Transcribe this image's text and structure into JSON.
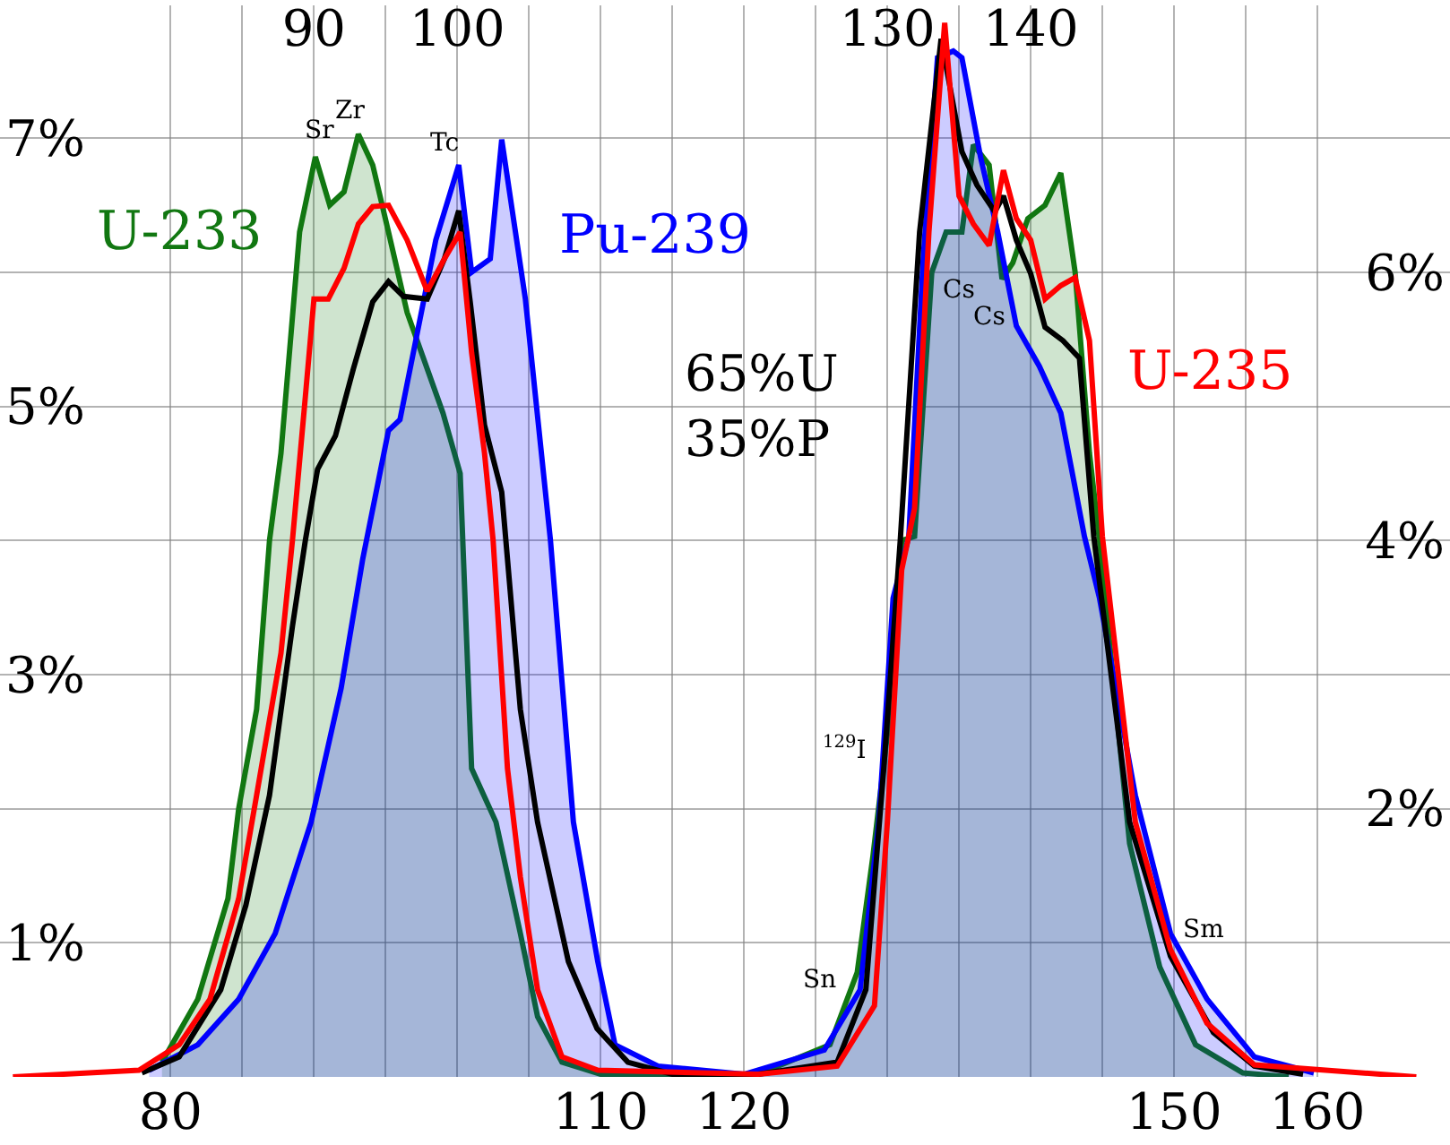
{
  "chart_data": {
    "type": "line",
    "xlim": [
      68.1,
      169.25
    ],
    "ylim": [
      0,
      7.99
    ],
    "y2lim": [
      0,
      7.99
    ],
    "x2lim": [
      68.1,
      169.25
    ],
    "xticks": [
      {
        "value": 80,
        "label": "80"
      },
      {
        "value": 85,
        "label": null
      },
      {
        "value": 90,
        "label": null
      },
      {
        "value": 95,
        "label": null
      },
      {
        "value": 100,
        "label": null
      },
      {
        "value": 105,
        "label": null
      },
      {
        "value": 110,
        "label": "110"
      },
      {
        "value": 115,
        "label": null
      },
      {
        "value": 120,
        "label": "120"
      },
      {
        "value": 125,
        "label": null
      },
      {
        "value": 130,
        "label": null
      },
      {
        "value": 135,
        "label": null
      },
      {
        "value": 140,
        "label": null
      },
      {
        "value": 145,
        "label": null
      },
      {
        "value": 150,
        "label": "150"
      },
      {
        "value": 155,
        "label": null
      },
      {
        "value": 160,
        "label": "160"
      }
    ],
    "x2ticks": [
      90,
      100,
      130,
      140
    ],
    "yticks": [
      {
        "value": 1,
        "label": "1%"
      },
      {
        "value": 2,
        "label": null
      },
      {
        "value": 3,
        "label": "3%"
      },
      {
        "value": 4,
        "label": null
      },
      {
        "value": 5,
        "label": "5%"
      },
      {
        "value": 6,
        "label": null
      },
      {
        "value": 7,
        "label": "7%"
      }
    ],
    "y2ticks": [
      {
        "value": 2,
        "label": "2%"
      },
      {
        "value": 4,
        "label": "4%"
      },
      {
        "value": 6,
        "label": "6%"
      }
    ],
    "grid": true,
    "marker": "none",
    "line_style": "solid",
    "series": [
      {
        "name": "U-233",
        "type": "area",
        "color": "#117711",
        "x": [
          79.4,
          81.9,
          84,
          84.75,
          86,
          86.9,
          87.7,
          89,
          90.1,
          91.1,
          92.1,
          93.1,
          94.1,
          95.2,
          96.5,
          99,
          100.2,
          101,
          102.7,
          104.4,
          105.6,
          107.3,
          110,
          121,
          126,
          127.9,
          129,
          130.2,
          131,
          131.9,
          133.1,
          134.1,
          135.2,
          136,
          137.1,
          138,
          138.75,
          139.8,
          141,
          142.1,
          143.1,
          144.1,
          144.8,
          146.9,
          149,
          151.5,
          154.8,
          158
        ],
        "values": [
          0.11,
          0.58,
          1.33,
          2.0,
          2.74,
          4.0,
          4.65,
          6.3,
          6.86,
          6.5,
          6.6,
          7.03,
          6.8,
          6.3,
          5.7,
          4.95,
          4.5,
          2.3,
          1.9,
          1.07,
          0.45,
          0.11,
          0.02,
          0.02,
          0.24,
          0.78,
          1.65,
          2.74,
          4.0,
          4.03,
          6.0,
          6.3,
          6.3,
          6.95,
          6.8,
          5.95,
          6.07,
          6.4,
          6.5,
          6.74,
          6.0,
          4.65,
          4.0,
          1.74,
          0.82,
          0.24,
          0.03,
          0.0
        ]
      },
      {
        "name": "Pu-239",
        "type": "area",
        "color": "#0000ff",
        "x": [
          78.5,
          81.9,
          84.75,
          87.3,
          89.8,
          91.9,
          93.4,
          95.2,
          96,
          98.5,
          100.1,
          101,
          102.3,
          103.1,
          104.75,
          106.5,
          107.3,
          108.1,
          109.8,
          111,
          114,
          120,
          125.6,
          128.1,
          129.4,
          130.4,
          131.5,
          132.5,
          133.5,
          134.6,
          135.2,
          136.5,
          137.7,
          139,
          140.6,
          142.1,
          143.75,
          144.8,
          147.3,
          149.75,
          152.3,
          155.6,
          159.75
        ],
        "values": [
          0.05,
          0.24,
          0.58,
          1.07,
          1.9,
          2.9,
          3.86,
          4.82,
          4.9,
          6.24,
          6.8,
          6.0,
          6.1,
          6.99,
          5.8,
          4.0,
          2.95,
          1.9,
          0.86,
          0.24,
          0.08,
          0.02,
          0.2,
          0.65,
          1.9,
          3.57,
          4.03,
          6.1,
          7.6,
          7.65,
          7.6,
          6.86,
          6.3,
          5.6,
          5.3,
          4.95,
          4.03,
          3.57,
          2.1,
          1.07,
          0.58,
          0.15,
          0.03
        ]
      },
      {
        "color": "#000000",
        "x": [
          78,
          80.6,
          83.5,
          85.25,
          86.9,
          88.5,
          89.4,
          90.25,
          91.5,
          92.75,
          94.1,
          95.2,
          96.25,
          97.9,
          99.1,
          100.1,
          100.9,
          101.9,
          103.1,
          104.4,
          105.6,
          107.75,
          109.75,
          111.9,
          115,
          121,
          126.5,
          128.5,
          129.75,
          130.9,
          132.25,
          133.75,
          135.2,
          136.25,
          137.5,
          138.1,
          139,
          140,
          141,
          142.25,
          143.4,
          144.4,
          146.9,
          149.75,
          152.75,
          155.6,
          159
        ],
        "values": [
          0.03,
          0.15,
          0.65,
          1.28,
          2.1,
          3.36,
          4.0,
          4.53,
          4.78,
          5.28,
          5.78,
          5.93,
          5.82,
          5.8,
          6.1,
          6.46,
          5.78,
          4.86,
          4.36,
          2.74,
          1.9,
          0.86,
          0.36,
          0.11,
          0.02,
          0.02,
          0.11,
          0.65,
          2.3,
          4.0,
          6.3,
          7.74,
          6.9,
          6.65,
          6.45,
          6.57,
          6.24,
          5.99,
          5.59,
          5.49,
          5.36,
          4.03,
          1.9,
          0.9,
          0.33,
          0.08,
          0.02
        ]
      },
      {
        "name": "U-235",
        "color": "#ff0000",
        "x": [
          69,
          77.8,
          80.6,
          82.75,
          84.75,
          86,
          87.7,
          88.5,
          89.4,
          90,
          91,
          92.1,
          93.1,
          94.1,
          95.2,
          96.5,
          97.9,
          99.1,
          100.2,
          101,
          101.9,
          102.5,
          103.5,
          104.4,
          105.6,
          107.3,
          109.8,
          121,
          126.5,
          129.1,
          130,
          131,
          131.9,
          132.9,
          134,
          135,
          136,
          137.1,
          138.1,
          139,
          140,
          141,
          142.1,
          143.1,
          144.1,
          145,
          147.3,
          149.75,
          152.3,
          155.6,
          166.9
        ],
        "values": [
          0,
          0.05,
          0.24,
          0.58,
          1.33,
          2.1,
          3.16,
          4.0,
          5.07,
          5.8,
          5.8,
          6.03,
          6.36,
          6.49,
          6.5,
          6.24,
          5.86,
          6.1,
          6.3,
          5.4,
          4.65,
          4.0,
          2.3,
          1.49,
          0.65,
          0.15,
          0.05,
          0.02,
          0.08,
          0.53,
          1.9,
          3.78,
          4.24,
          6.3,
          7.86,
          6.57,
          6.36,
          6.2,
          6.76,
          6.4,
          6.24,
          5.8,
          5.9,
          5.96,
          5.49,
          4.03,
          1.9,
          0.95,
          0.4,
          0.09,
          0
        ]
      }
    ],
    "annotations": [
      "Sr",
      "Zr",
      "Tc",
      "Cs",
      "Cs",
      "$^{129}$I",
      "Sn",
      "Sm",
      "65%U\n35%P"
    ]
  }
}
